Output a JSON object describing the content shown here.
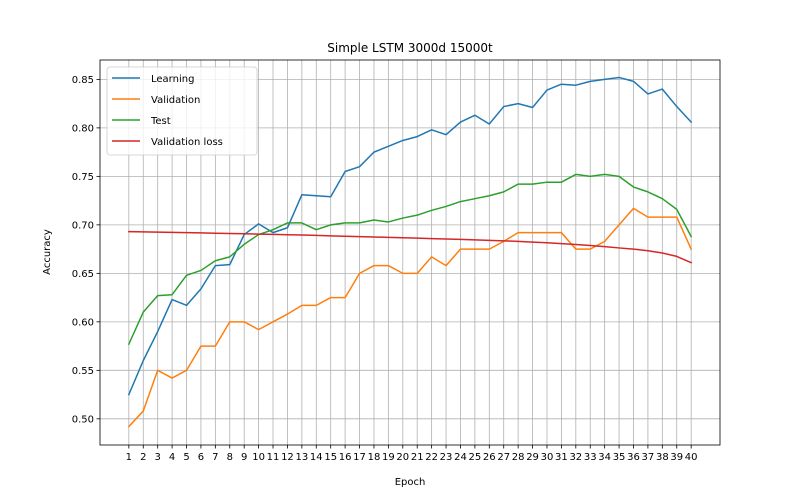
{
  "chart_data": {
    "type": "line",
    "title": "Simple LSTM 3000d 15000t",
    "xlabel": "Epoch",
    "ylabel": "Accuracy",
    "x": [
      1,
      2,
      3,
      4,
      5,
      6,
      7,
      8,
      9,
      10,
      11,
      12,
      13,
      14,
      15,
      16,
      17,
      18,
      19,
      20,
      21,
      22,
      23,
      24,
      25,
      26,
      27,
      28,
      29,
      30,
      31,
      32,
      33,
      34,
      35,
      36,
      37,
      38,
      39,
      40
    ],
    "xlim": [
      -1,
      42
    ],
    "ylim": [
      0.473,
      0.87
    ],
    "yticks": [
      "0.50",
      "0.55",
      "0.60",
      "0.65",
      "0.70",
      "0.75",
      "0.80",
      "0.85"
    ],
    "grid": true,
    "legend_position": "top-left",
    "series": [
      {
        "name": "Learning",
        "color": "#1f77b4",
        "values": [
          0.525,
          0.56,
          0.59,
          0.623,
          0.617,
          0.634,
          0.658,
          0.659,
          0.69,
          0.701,
          0.692,
          0.697,
          0.731,
          0.73,
          0.729,
          0.755,
          0.76,
          0.775,
          0.781,
          0.787,
          0.791,
          0.798,
          0.793,
          0.806,
          0.813,
          0.804,
          0.822,
          0.825,
          0.821,
          0.839,
          0.845,
          0.844,
          0.848,
          0.85,
          0.852,
          0.848,
          0.835,
          0.84,
          0.822,
          0.806
        ]
      },
      {
        "name": "Validation",
        "color": "#ff7f0e",
        "values": [
          0.492,
          0.508,
          0.55,
          0.542,
          0.55,
          0.575,
          0.575,
          0.6,
          0.6,
          0.592,
          0.6,
          0.608,
          0.617,
          0.617,
          0.625,
          0.625,
          0.65,
          0.658,
          0.658,
          0.65,
          0.65,
          0.667,
          0.658,
          0.675,
          0.675,
          0.675,
          0.683,
          0.692,
          0.692,
          0.692,
          0.692,
          0.675,
          0.675,
          0.683,
          0.7,
          0.717,
          0.708,
          0.708,
          0.708,
          0.675
        ]
      },
      {
        "name": "Test",
        "color": "#2ca02c",
        "values": [
          0.577,
          0.61,
          0.627,
          0.628,
          0.648,
          0.653,
          0.663,
          0.667,
          0.68,
          0.69,
          0.695,
          0.702,
          0.702,
          0.695,
          0.7,
          0.702,
          0.702,
          0.705,
          0.703,
          0.707,
          0.71,
          0.715,
          0.719,
          0.724,
          0.727,
          0.73,
          0.734,
          0.742,
          0.742,
          0.744,
          0.744,
          0.752,
          0.75,
          0.752,
          0.75,
          0.739,
          0.734,
          0.727,
          0.716,
          0.688
        ]
      },
      {
        "name": "Validation loss",
        "color": "#d62728",
        "values": [
          0.693,
          0.6928,
          0.6925,
          0.6922,
          0.692,
          0.6917,
          0.6914,
          0.6911,
          0.6908,
          0.6905,
          0.6902,
          0.6898,
          0.6895,
          0.6891,
          0.6887,
          0.6883,
          0.6879,
          0.6875,
          0.6871,
          0.6867,
          0.6863,
          0.6858,
          0.6854,
          0.685,
          0.6845,
          0.684,
          0.6835,
          0.683,
          0.6822,
          0.6815,
          0.6807,
          0.6797,
          0.6787,
          0.6775,
          0.6762,
          0.675,
          0.6733,
          0.671,
          0.6675,
          0.661
        ]
      }
    ]
  }
}
